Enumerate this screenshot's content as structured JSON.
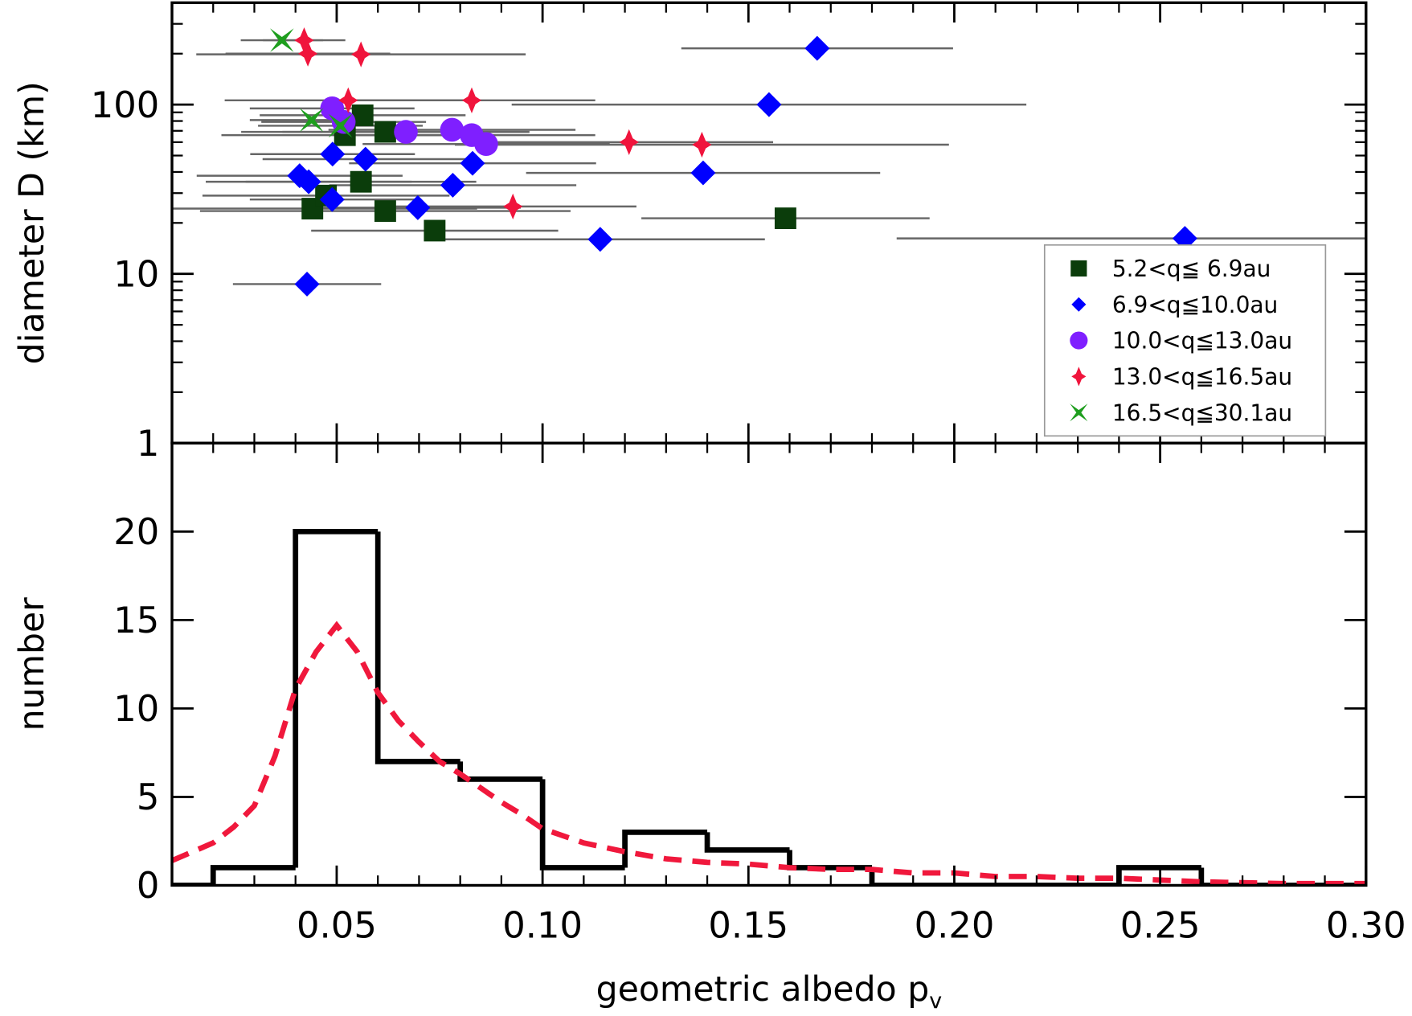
{
  "chart_data": [
    {
      "type": "scatter",
      "ylabel": "diameter D (km)",
      "ylog": true,
      "xlim": [
        0.01,
        0.3
      ],
      "ylim": [
        1,
        400
      ],
      "xticks": [
        0.05,
        {
          "value": 0.1,
          "label": "0.10"
        },
        0.15,
        {
          "value": 0.2,
          "label": "0.20"
        },
        0.25,
        {
          "value": 0.3,
          "label": "0.30"
        }
      ],
      "xminorticks": [
        0.01,
        0.02,
        0.03,
        0.04,
        0.06,
        0.07,
        0.08,
        0.09,
        0.11,
        0.12,
        0.13,
        0.14,
        0.16,
        0.17,
        0.18,
        0.19,
        0.21,
        0.22,
        0.23,
        0.24,
        0.26,
        0.27,
        0.28,
        0.29
      ],
      "yticks": [
        1,
        10,
        100
      ],
      "yminorticks": [
        2,
        3,
        4,
        5,
        6,
        7,
        8,
        9,
        20,
        30,
        40,
        50,
        60,
        70,
        80,
        90,
        200,
        300,
        400
      ],
      "errorbar_color": "#666666",
      "legend": "lower right",
      "series": [
        {
          "name": "5.2<q≦ 6.9au",
          "marker": "square",
          "color": "#0b3d0b",
          "x": [
            0.0563,
            0.052,
            0.0618,
            0.0559,
            0.0441,
            0.0474,
            0.0618,
            0.0738,
            0.159
          ],
          "values": [
            86.5,
            66,
            69,
            35,
            24.3,
            29,
            23.5,
            18,
            21.3
          ],
          "xerr": [
            0.025,
            0.03,
            0.035,
            0.028,
            0.04,
            0.03,
            0.045,
            0.03,
            0.035
          ]
        },
        {
          "name": "6.9<q≦10.0au",
          "marker": "diamond",
          "color": "#0000ff",
          "x": [
            0.1667,
            0.155,
            0.139,
            0.114,
            0.256,
            0.083,
            0.0782,
            0.0697,
            0.057,
            0.049,
            0.041,
            0.0432,
            0.0489,
            0.0428
          ],
          "values": [
            215,
            100,
            39.5,
            16,
            16.2,
            45,
            33.4,
            24.6,
            47.6,
            51,
            38,
            35,
            27.5,
            8.7
          ],
          "xerr": [
            0.033,
            0.0625,
            0.043,
            0.04,
            0.07,
            0.03,
            0.03,
            0.025,
            0.025,
            0.02,
            0.025,
            0.025,
            0.02,
            0.018
          ]
        },
        {
          "name": "10.0<q≦13.0au",
          "marker": "circle",
          "color": "#7f1fff",
          "x": [
            0.0489,
            0.0517,
            0.0668,
            0.078,
            0.0828,
            0.0863
          ],
          "values": [
            95,
            79,
            69,
            71,
            66,
            58.5
          ],
          "xerr": [
            0.02,
            0.02,
            0.03,
            0.03,
            0.03,
            0.03
          ]
        },
        {
          "name": "13.0<q≦16.5au",
          "marker": "star4",
          "color": "#f0143c",
          "x": [
            0.0421,
            0.043,
            0.0559,
            0.0528,
            0.0828,
            0.121,
            0.1387,
            0.0928
          ],
          "values": [
            240,
            200,
            198,
            106,
            106,
            60,
            58,
            25
          ],
          "xerr": [
            0.01,
            0.02,
            0.04,
            0.03,
            0.03,
            0.035,
            0.06,
            0.03
          ]
        },
        {
          "name": "16.5<q≦30.1au",
          "marker": "xstar",
          "color": "#1e9e1e",
          "x": [
            0.0367,
            0.0439,
            0.0509
          ],
          "values": [
            240,
            81,
            75
          ],
          "xerr": [
            0.01,
            0.015,
            0.02
          ]
        }
      ]
    },
    {
      "type": "histogram",
      "ylabel": "number",
      "xlabel": "geometric albedo p",
      "xlabel_sub": "v",
      "xlim": [
        0.01,
        0.3
      ],
      "ylim": [
        0,
        25
      ],
      "xticks": [
        0.05,
        {
          "value": 0.1,
          "label": "0.10"
        },
        0.15,
        {
          "value": 0.2,
          "label": "0.20"
        },
        0.25,
        {
          "value": 0.3,
          "label": "0.30"
        }
      ],
      "xminorticks": [
        0.01,
        0.02,
        0.03,
        0.04,
        0.06,
        0.07,
        0.08,
        0.09,
        0.11,
        0.12,
        0.13,
        0.14,
        0.16,
        0.17,
        0.18,
        0.19,
        0.21,
        0.22,
        0.23,
        0.24,
        0.26,
        0.27,
        0.28,
        0.29
      ],
      "yticks": [
        0,
        5,
        10,
        15,
        20
      ],
      "bins": [
        0,
        0.02,
        0.04,
        0.06,
        0.08,
        0.1,
        0.12,
        0.14,
        0.16,
        0.18,
        0.2,
        0.22,
        0.24,
        0.26,
        0.28,
        0.3
      ],
      "counts": [
        0,
        1,
        20,
        7,
        6,
        1,
        3,
        2,
        1,
        0,
        0,
        0,
        1,
        0,
        0
      ],
      "color": "#000000",
      "line": {
        "color": "#f0183c",
        "x": [
          0.01,
          0.02,
          0.025,
          0.03,
          0.035,
          0.04,
          0.045,
          0.05,
          0.055,
          0.06,
          0.065,
          0.07,
          0.075,
          0.08,
          0.085,
          0.09,
          0.095,
          0.1,
          0.11,
          0.12,
          0.13,
          0.14,
          0.15,
          0.16,
          0.17,
          0.18,
          0.19,
          0.2,
          0.21,
          0.22,
          0.23,
          0.24,
          0.25,
          0.26,
          0.27,
          0.28,
          0.29,
          0.3
        ],
        "values": [
          1.4,
          2.4,
          3.3,
          4.5,
          7.3,
          11.1,
          13.2,
          14.7,
          13.2,
          10.9,
          9.3,
          8.1,
          7.0,
          6.3,
          5.5,
          4.7,
          4.0,
          3.2,
          2.4,
          1.9,
          1.5,
          1.3,
          1.2,
          1.0,
          0.9,
          0.9,
          0.7,
          0.7,
          0.5,
          0.5,
          0.4,
          0.4,
          0.3,
          0.2,
          0.15,
          0.1,
          0.1,
          0.1
        ]
      }
    }
  ]
}
